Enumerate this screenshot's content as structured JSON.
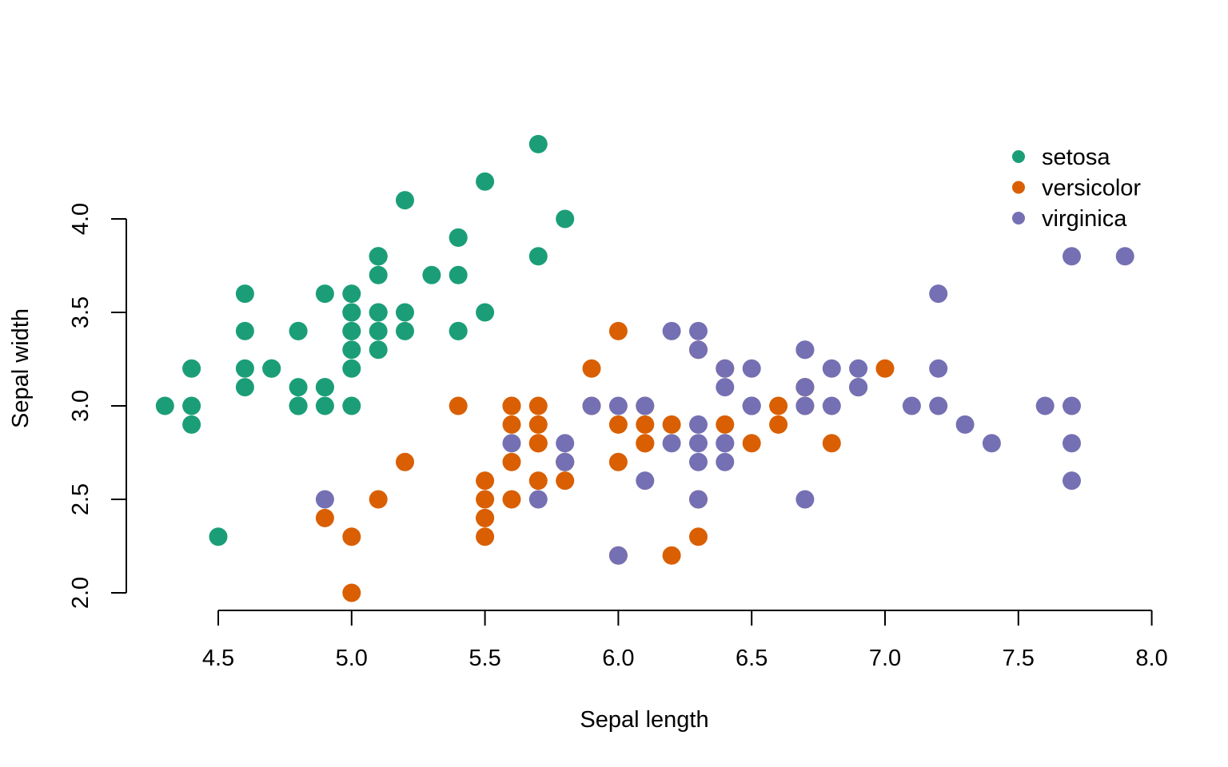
{
  "chart_data": {
    "type": "scatter",
    "title": "",
    "xlabel": "Sepal length",
    "ylabel": "Sepal width",
    "xlim": [
      4.3,
      7.9
    ],
    "ylim": [
      2.0,
      4.4
    ],
    "x_ticks": [
      "4.5",
      "5.0",
      "5.5",
      "6.0",
      "6.5",
      "7.0",
      "7.5",
      "8.0"
    ],
    "y_ticks": [
      "2.0",
      "2.5",
      "3.0",
      "3.5",
      "4.0"
    ],
    "grid": false,
    "legend_position": "top-right",
    "series": [
      {
        "name": "setosa",
        "color": "#1b9e77",
        "points": [
          [
            5.1,
            3.5
          ],
          [
            4.9,
            3.0
          ],
          [
            4.7,
            3.2
          ],
          [
            4.6,
            3.1
          ],
          [
            5.0,
            3.6
          ],
          [
            5.4,
            3.9
          ],
          [
            4.6,
            3.4
          ],
          [
            5.0,
            3.4
          ],
          [
            4.4,
            2.9
          ],
          [
            4.9,
            3.1
          ],
          [
            5.4,
            3.7
          ],
          [
            4.8,
            3.4
          ],
          [
            4.8,
            3.0
          ],
          [
            4.3,
            3.0
          ],
          [
            5.8,
            4.0
          ],
          [
            5.7,
            4.4
          ],
          [
            5.4,
            3.9
          ],
          [
            5.1,
            3.5
          ],
          [
            5.7,
            3.8
          ],
          [
            5.1,
            3.8
          ],
          [
            5.4,
            3.4
          ],
          [
            5.1,
            3.7
          ],
          [
            4.6,
            3.6
          ],
          [
            5.1,
            3.3
          ],
          [
            4.8,
            3.4
          ],
          [
            5.0,
            3.0
          ],
          [
            5.0,
            3.4
          ],
          [
            5.2,
            3.5
          ],
          [
            5.2,
            3.4
          ],
          [
            4.7,
            3.2
          ],
          [
            4.8,
            3.1
          ],
          [
            5.4,
            3.4
          ],
          [
            5.2,
            4.1
          ],
          [
            5.5,
            4.2
          ],
          [
            4.9,
            3.1
          ],
          [
            5.0,
            3.2
          ],
          [
            5.5,
            3.5
          ],
          [
            4.9,
            3.6
          ],
          [
            4.4,
            3.0
          ],
          [
            5.1,
            3.4
          ],
          [
            5.0,
            3.5
          ],
          [
            4.5,
            2.3
          ],
          [
            4.4,
            3.2
          ],
          [
            5.0,
            3.5
          ],
          [
            5.1,
            3.8
          ],
          [
            4.8,
            3.0
          ],
          [
            5.1,
            3.8
          ],
          [
            4.6,
            3.2
          ],
          [
            5.3,
            3.7
          ],
          [
            5.0,
            3.3
          ]
        ]
      },
      {
        "name": "versicolor",
        "color": "#d95f02",
        "points": [
          [
            7.0,
            3.2
          ],
          [
            6.4,
            3.2
          ],
          [
            6.9,
            3.1
          ],
          [
            5.5,
            2.3
          ],
          [
            6.5,
            2.8
          ],
          [
            5.7,
            2.8
          ],
          [
            6.3,
            3.3
          ],
          [
            4.9,
            2.4
          ],
          [
            6.6,
            2.9
          ],
          [
            5.2,
            2.7
          ],
          [
            5.0,
            2.0
          ],
          [
            5.9,
            3.0
          ],
          [
            6.0,
            2.2
          ],
          [
            6.1,
            2.9
          ],
          [
            5.6,
            2.9
          ],
          [
            6.7,
            3.1
          ],
          [
            5.6,
            3.0
          ],
          [
            5.8,
            2.7
          ],
          [
            6.2,
            2.2
          ],
          [
            5.6,
            2.5
          ],
          [
            5.9,
            3.2
          ],
          [
            6.1,
            2.8
          ],
          [
            6.3,
            2.5
          ],
          [
            6.1,
            2.8
          ],
          [
            6.4,
            2.9
          ],
          [
            6.6,
            3.0
          ],
          [
            6.8,
            2.8
          ],
          [
            6.7,
            3.0
          ],
          [
            6.0,
            2.9
          ],
          [
            5.7,
            2.6
          ],
          [
            5.5,
            2.4
          ],
          [
            5.5,
            2.4
          ],
          [
            5.8,
            2.7
          ],
          [
            6.0,
            2.7
          ],
          [
            5.4,
            3.0
          ],
          [
            6.0,
            3.4
          ],
          [
            6.7,
            3.1
          ],
          [
            6.3,
            2.3
          ],
          [
            5.6,
            3.0
          ],
          [
            5.5,
            2.5
          ],
          [
            5.5,
            2.6
          ],
          [
            6.1,
            3.0
          ],
          [
            5.8,
            2.6
          ],
          [
            5.0,
            2.3
          ],
          [
            5.6,
            2.7
          ],
          [
            5.7,
            3.0
          ],
          [
            5.7,
            2.9
          ],
          [
            6.2,
            2.9
          ],
          [
            5.1,
            2.5
          ],
          [
            5.7,
            2.8
          ]
        ]
      },
      {
        "name": "virginica",
        "color": "#7570b3",
        "points": [
          [
            6.3,
            3.3
          ],
          [
            5.8,
            2.7
          ],
          [
            7.1,
            3.0
          ],
          [
            6.3,
            2.9
          ],
          [
            6.5,
            3.0
          ],
          [
            7.6,
            3.0
          ],
          [
            4.9,
            2.5
          ],
          [
            7.3,
            2.9
          ],
          [
            6.7,
            2.5
          ],
          [
            7.2,
            3.6
          ],
          [
            6.5,
            3.2
          ],
          [
            6.4,
            2.7
          ],
          [
            6.8,
            3.0
          ],
          [
            5.7,
            2.5
          ],
          [
            5.8,
            2.8
          ],
          [
            6.4,
            3.2
          ],
          [
            6.5,
            3.0
          ],
          [
            7.7,
            3.8
          ],
          [
            7.7,
            2.6
          ],
          [
            6.0,
            2.2
          ],
          [
            6.9,
            3.2
          ],
          [
            5.6,
            2.8
          ],
          [
            7.7,
            2.8
          ],
          [
            6.3,
            2.7
          ],
          [
            6.7,
            3.3
          ],
          [
            7.2,
            3.2
          ],
          [
            6.2,
            2.8
          ],
          [
            6.1,
            3.0
          ],
          [
            6.4,
            2.8
          ],
          [
            7.2,
            3.0
          ],
          [
            7.4,
            2.8
          ],
          [
            7.9,
            3.8
          ],
          [
            6.4,
            2.8
          ],
          [
            6.3,
            2.8
          ],
          [
            6.1,
            2.6
          ],
          [
            7.7,
            3.0
          ],
          [
            6.3,
            3.4
          ],
          [
            6.4,
            3.1
          ],
          [
            6.0,
            3.0
          ],
          [
            6.9,
            3.1
          ],
          [
            6.7,
            3.1
          ],
          [
            6.9,
            3.1
          ],
          [
            5.8,
            2.7
          ],
          [
            6.8,
            3.2
          ],
          [
            6.7,
            3.3
          ],
          [
            6.7,
            3.0
          ],
          [
            6.3,
            2.5
          ],
          [
            6.5,
            3.0
          ],
          [
            6.2,
            3.4
          ],
          [
            5.9,
            3.0
          ]
        ]
      }
    ]
  }
}
